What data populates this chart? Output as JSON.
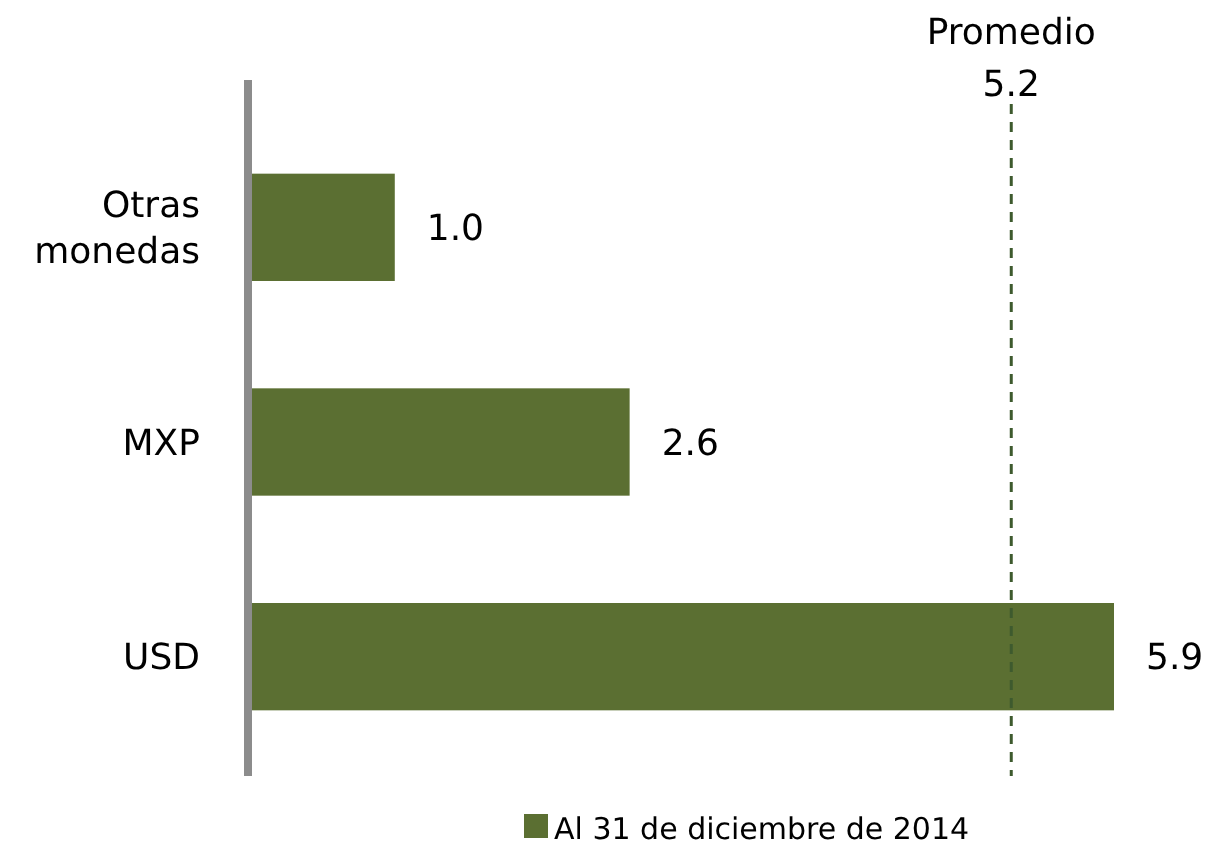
{
  "chart_data": {
    "type": "bar",
    "orientation": "horizontal",
    "categories": [
      "Otras monedas",
      "MXP",
      "USD"
    ],
    "series": [
      {
        "name": "Al 31 de diciembre de 2014",
        "color": "#5b6f32",
        "values": [
          1.0,
          2.6,
          5.9
        ],
        "value_labels": [
          "1.0",
          "2.6",
          "5.9"
        ]
      }
    ],
    "ref_lines": [
      {
        "axis": "x",
        "value": 5.2,
        "label": "Promedio\n5.2",
        "color": "#3e5a2e",
        "line_style": "dashed"
      }
    ],
    "legend": "bottom"
  }
}
